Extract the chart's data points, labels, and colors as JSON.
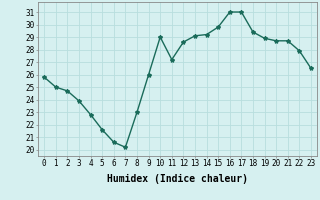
{
  "x": [
    0,
    1,
    2,
    3,
    4,
    5,
    6,
    7,
    8,
    9,
    10,
    11,
    12,
    13,
    14,
    15,
    16,
    17,
    18,
    19,
    20,
    21,
    22,
    23
  ],
  "y": [
    25.8,
    25.0,
    24.7,
    23.9,
    22.8,
    21.6,
    20.6,
    20.2,
    23.0,
    26.0,
    29.0,
    27.2,
    28.6,
    29.1,
    29.2,
    29.8,
    31.0,
    31.0,
    29.4,
    28.9,
    28.7,
    28.7,
    27.9,
    26.5
  ],
  "line_color": "#1a6b5a",
  "marker": "*",
  "bg_color": "#d6f0f0",
  "grid_color": "#b8dede",
  "xlabel": "Humidex (Indice chaleur)",
  "ylabel_ticks": [
    20,
    21,
    22,
    23,
    24,
    25,
    26,
    27,
    28,
    29,
    30,
    31
  ],
  "ylim": [
    19.5,
    31.8
  ],
  "xlim": [
    -0.5,
    23.5
  ],
  "xticks": [
    0,
    1,
    2,
    3,
    4,
    5,
    6,
    7,
    8,
    9,
    10,
    11,
    12,
    13,
    14,
    15,
    16,
    17,
    18,
    19,
    20,
    21,
    22,
    23
  ],
  "xlabel_fontsize": 7,
  "tick_fontsize": 5.5,
  "line_width": 1.0,
  "marker_size": 3
}
